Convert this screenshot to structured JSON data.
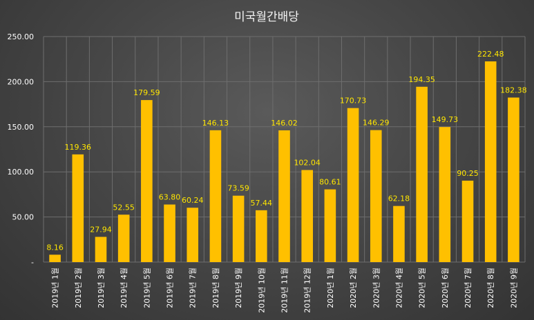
{
  "chart_data": {
    "type": "bar",
    "title": "미국월간배당",
    "categories": [
      "2019년 1월",
      "2019년 2월",
      "2019년 3월",
      "2019년 4월",
      "2019년 5월",
      "2019년 6월",
      "2019년 7월",
      "2019년 8월",
      "2019년 9월",
      "2019년 10월",
      "2019년 11월",
      "2019년 12월",
      "2020년 1월",
      "2020년 2월",
      "2020년 3월",
      "2020년 4월",
      "2020년 5월",
      "2020년 6월",
      "2020년 7월",
      "2020년 8월",
      "2020년 9월"
    ],
    "values": [
      8.16,
      119.36,
      27.94,
      52.55,
      179.59,
      63.8,
      60.24,
      146.13,
      73.59,
      57.44,
      146.02,
      102.04,
      80.61,
      170.73,
      146.29,
      62.18,
      194.35,
      149.73,
      90.25,
      222.48,
      182.38
    ],
    "value_labels": [
      "8.16",
      "119.36",
      "27.94",
      "52.55",
      "179.59",
      "63.80",
      "60.24",
      "146.13",
      "73.59",
      "57.44",
      "146.02",
      "102.04",
      "80.61",
      "170.73",
      "146.29",
      "62.18",
      "194.35",
      "149.73",
      "90.25",
      "222.48",
      "182.38"
    ],
    "yticks": [
      "-",
      "50.00",
      "100.00",
      "150.00",
      "200.00",
      "250.00"
    ],
    "ylim": [
      0,
      250
    ],
    "grid": true,
    "bar_color": "#FFC000",
    "label_color": "#FFE600",
    "grid_color": "#6e6e6e",
    "xlabel": "",
    "ylabel": ""
  }
}
